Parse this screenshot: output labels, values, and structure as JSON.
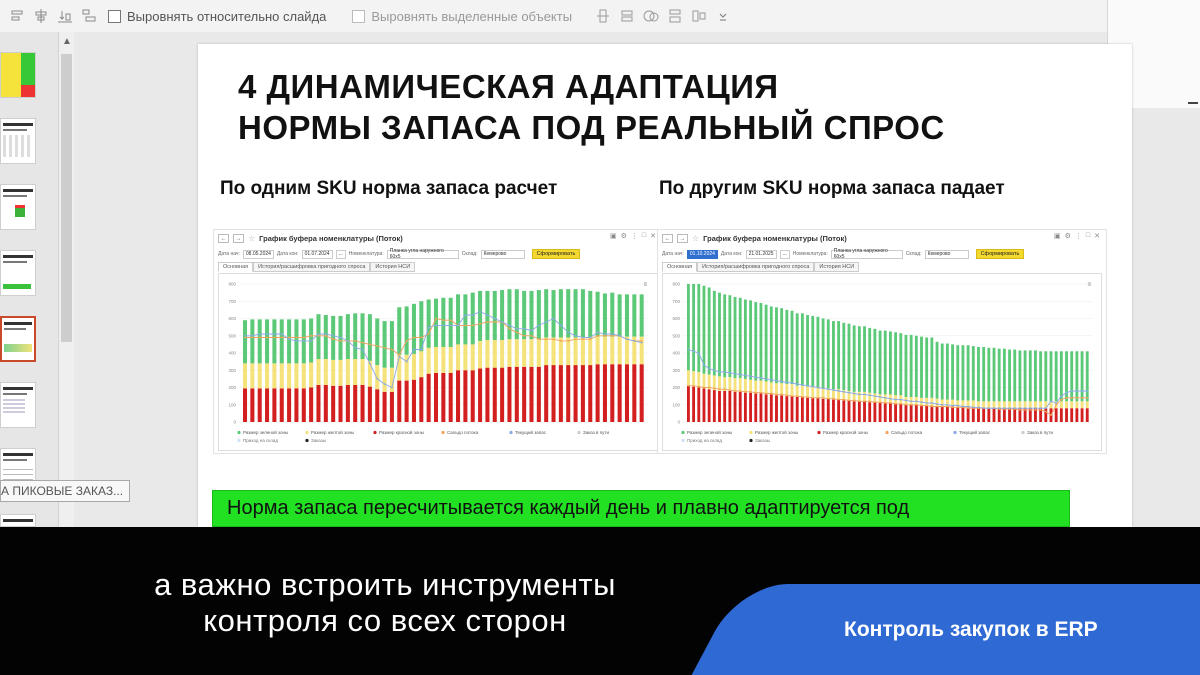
{
  "toolbar": {
    "align_slide_label": "Выровнять относительно слайда",
    "align_selected_label": "Выровнять выделенные объекты"
  },
  "thumbnails_tooltip": "А ПИКОВЫЕ ЗАКАЗ...",
  "slide": {
    "title_line1": "4 ДИНАМИЧЕСКАЯ АДАПТАЦИЯ",
    "title_line2": "НОРМЫ ЗАПАСА ПОД РЕАЛЬНЫЙ СПРОС",
    "subtitle_left": "По одним SKU норма запаса расчет",
    "subtitle_right": "По другим SKU норма запаса падает",
    "green_text": "Норма запаса пересчитывается каждый день и плавно адаптируется под"
  },
  "panel_left": {
    "title": "График буфера номенклатуры (Поток)",
    "date_from_label": "Дата нач:",
    "date_from": "08.05.2024",
    "date_to_label": "Дата кон:",
    "date_to": "01.07.2024",
    "item_label": "Номенклатура:",
    "item_value": "Планка угла наружного 60х5",
    "warehouse_label": "Склад:",
    "warehouse_value": "Кемерово",
    "form_button": "Сформировать",
    "tabs": [
      "Основная",
      "История/расшифровка пригодного спроса",
      "История НСИ"
    ]
  },
  "panel_right": {
    "title": "График буфера номенклатуры (Поток)",
    "date_from_label": "Дата нач:",
    "date_from": "01.10.2024",
    "date_to_label": "Дата кон:",
    "date_to": "21.01.2025",
    "item_label": "Номенклатура:",
    "item_value": "Планка угла наружного 60х5",
    "warehouse_label": "Склад:",
    "warehouse_value": "Кемерово",
    "form_button": "Сформировать",
    "tabs": [
      "Основная",
      "История/расшифровка пригодного спроса",
      "История НСИ"
    ]
  },
  "legend": {
    "green": "Размер зеленой зоны",
    "yellow": "Размер желтой зоны",
    "red": "Размер красной зоны",
    "saldo": "Сальдо потока",
    "stock": "Текущий запас",
    "orders": "Заказ в пути",
    "orders2": "Приход на склад",
    "orders3": "Заказы"
  },
  "colors": {
    "green": "#5cc978",
    "yellow": "#f5e27a",
    "red": "#d31f1f",
    "saldo": "#f0a35c",
    "stock": "#8aa9e6",
    "slide_green": "#22e022",
    "badge": "#2f6ad4"
  },
  "chart_data": [
    {
      "type": "bar",
      "stacked": true,
      "ylim": [
        0,
        800
      ],
      "yticks": [
        "0",
        "100",
        "200",
        "300",
        "400",
        "500",
        "600",
        "700",
        "800"
      ],
      "bars": 55,
      "series": [
        {
          "name": "Размер красной зоны",
          "values": [
            195,
            195,
            195,
            195,
            195,
            195,
            195,
            195,
            195,
            200,
            215,
            215,
            210,
            210,
            215,
            215,
            215,
            205,
            190,
            175,
            175,
            240,
            240,
            245,
            260,
            280,
            285,
            285,
            285,
            300,
            300,
            300,
            310,
            315,
            315,
            315,
            320,
            320,
            320,
            320,
            320,
            330,
            330,
            330,
            330,
            330,
            330,
            330,
            335,
            335,
            335,
            335,
            335,
            335,
            335
          ]
        },
        {
          "name": "Размер желтой зоны",
          "values": [
            145,
            145,
            145,
            145,
            145,
            145,
            145,
            145,
            145,
            145,
            150,
            150,
            150,
            150,
            150,
            150,
            150,
            150,
            140,
            140,
            140,
            150,
            150,
            150,
            150,
            150,
            150,
            150,
            150,
            150,
            150,
            150,
            160,
            160,
            160,
            160,
            160,
            160,
            160,
            160,
            160,
            160,
            160,
            160,
            160,
            160,
            160,
            160,
            160,
            160,
            160,
            160,
            160,
            160,
            160
          ]
        },
        {
          "name": "Размер зеленой зоны",
          "values": [
            250,
            255,
            255,
            255,
            255,
            255,
            255,
            255,
            255,
            255,
            260,
            255,
            255,
            255,
            260,
            265,
            265,
            270,
            270,
            270,
            270,
            275,
            280,
            290,
            290,
            280,
            280,
            285,
            285,
            290,
            290,
            300,
            290,
            285,
            285,
            290,
            290,
            290,
            280,
            280,
            285,
            280,
            275,
            280,
            280,
            280,
            280,
            270,
            260,
            250,
            255,
            245,
            245,
            245,
            245
          ]
        }
      ],
      "saldo": [
        490,
        490,
        490,
        490,
        490,
        490,
        490,
        490,
        490,
        500,
        500,
        500,
        480,
        470,
        470,
        470,
        460,
        450,
        440,
        430,
        420,
        390,
        470,
        490,
        490,
        510,
        600,
        590,
        590,
        560,
        560,
        560,
        570,
        580,
        580,
        580,
        540,
        520,
        500,
        500,
        480,
        480,
        480,
        470,
        470,
        480,
        480,
        480,
        500,
        500,
        500,
        500,
        480,
        470,
        470
      ],
      "stock": [
        500,
        500,
        510,
        510,
        510,
        510,
        480,
        470,
        470,
        470,
        510,
        510,
        500,
        490,
        470,
        430,
        420,
        340,
        250,
        220,
        200,
        380,
        350,
        420,
        420,
        550,
        560,
        560,
        560,
        560,
        620,
        620,
        640,
        620,
        600,
        580,
        560,
        540,
        540,
        530,
        560,
        580,
        600,
        560,
        520,
        500,
        490,
        490,
        520,
        510,
        510,
        500,
        480,
        470,
        460
      ]
    },
    {
      "type": "bar",
      "stacked": true,
      "ylim": [
        0,
        800
      ],
      "yticks": [
        "0",
        "100",
        "200",
        "300",
        "400",
        "500",
        "600",
        "700",
        "800"
      ],
      "bars": 78,
      "series": [
        {
          "name": "Размер красной зоны",
          "values": [
            210,
            205,
            200,
            195,
            190,
            185,
            180,
            180,
            180,
            175,
            175,
            170,
            170,
            165,
            165,
            160,
            160,
            155,
            155,
            150,
            150,
            145,
            145,
            140,
            140,
            140,
            135,
            135,
            130,
            130,
            125,
            125,
            120,
            120,
            120,
            115,
            115,
            110,
            110,
            110,
            105,
            105,
            100,
            100,
            100,
            95,
            95,
            95,
            90,
            90,
            90,
            90,
            85,
            85,
            85,
            85,
            80,
            80,
            80,
            80,
            80,
            80,
            80,
            80,
            80,
            80,
            80,
            80,
            80,
            80,
            80,
            80,
            80,
            80,
            80,
            80,
            80,
            80
          ]
        },
        {
          "name": "Размер желтой зоны",
          "values": [
            90,
            90,
            90,
            85,
            85,
            85,
            85,
            80,
            80,
            80,
            80,
            80,
            75,
            75,
            75,
            75,
            70,
            70,
            70,
            70,
            70,
            65,
            65,
            65,
            65,
            60,
            60,
            60,
            60,
            60,
            60,
            55,
            55,
            55,
            55,
            55,
            50,
            50,
            50,
            50,
            50,
            50,
            45,
            45,
            45,
            45,
            45,
            45,
            45,
            40,
            40,
            40,
            40,
            40,
            40,
            40,
            40,
            40,
            40,
            40,
            40,
            40,
            40,
            40,
            40,
            40,
            40,
            40,
            40,
            40,
            40,
            40,
            40,
            40,
            40,
            40,
            40,
            40
          ]
        },
        {
          "name": "Размер зеленой зоны",
          "values": [
            500,
            505,
            510,
            510,
            505,
            490,
            485,
            480,
            475,
            470,
            465,
            460,
            460,
            455,
            450,
            445,
            440,
            440,
            435,
            430,
            425,
            420,
            420,
            415,
            410,
            410,
            405,
            400,
            395,
            395,
            390,
            390,
            385,
            380,
            380,
            375,
            375,
            370,
            370,
            365,
            365,
            360,
            360,
            360,
            355,
            355,
            350,
            350,
            330,
            325,
            325,
            320,
            320,
            320,
            320,
            315,
            315,
            315,
            310,
            310,
            305,
            305,
            300,
            300,
            295,
            295,
            295,
            295,
            290,
            290,
            290,
            290,
            290,
            290,
            290,
            290,
            290,
            290
          ]
        }
      ],
      "saldo": [
        210,
        210,
        205,
        200,
        200,
        195,
        190,
        190,
        185,
        180,
        180,
        175,
        175,
        170,
        170,
        165,
        165,
        160,
        160,
        155,
        150,
        150,
        145,
        145,
        140,
        140,
        140,
        135,
        135,
        130,
        130,
        125,
        125,
        120,
        120,
        120,
        115,
        115,
        110,
        110,
        105,
        105,
        100,
        100,
        100,
        95,
        95,
        90,
        90,
        90,
        90,
        85,
        85,
        85,
        80,
        80,
        80,
        80,
        80,
        80,
        75,
        75,
        75,
        75,
        70,
        70,
        70,
        70,
        70,
        60,
        40,
        100,
        130,
        140,
        140,
        140,
        140,
        140
      ],
      "stock": [
        420,
        410,
        400,
        330,
        310,
        300,
        290,
        290,
        285,
        280,
        275,
        270,
        265,
        260,
        255,
        250,
        245,
        240,
        235,
        230,
        225,
        220,
        215,
        210,
        205,
        200,
        195,
        190,
        185,
        180,
        175,
        170,
        165,
        160,
        160,
        155,
        150,
        145,
        140,
        135,
        130,
        130,
        125,
        120,
        120,
        115,
        110,
        110,
        105,
        100,
        100,
        95,
        95,
        90,
        90,
        85,
        85,
        80,
        80,
        80,
        80,
        80,
        80,
        80,
        80,
        80,
        80,
        80,
        80,
        80,
        120,
        110,
        150,
        170,
        180,
        180,
        180,
        180
      ]
    }
  ]
}
